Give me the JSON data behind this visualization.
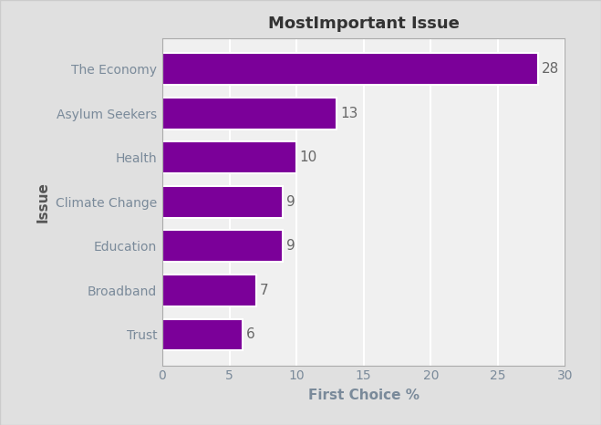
{
  "title": "MostImportant Issue",
  "categories": [
    "Trust",
    "Broadband",
    "Education",
    "Climate Change",
    "Health",
    "Asylum Seekers",
    "The Economy"
  ],
  "values": [
    6,
    7,
    9,
    9,
    10,
    13,
    28
  ],
  "bar_color": "#7B0099",
  "xlabel": "First Choice %",
  "ylabel": "Issue",
  "xlim": [
    0,
    30
  ],
  "xticks": [
    0,
    5,
    10,
    15,
    20,
    25,
    30
  ],
  "background_color": "#E0E0E0",
  "plot_bg_color": "#F0F0F0",
  "title_fontsize": 13,
  "label_fontsize": 11,
  "tick_fontsize": 10,
  "label_color": "#7A8A9A",
  "ylabel_color": "#555555",
  "value_label_color": "#666666",
  "grid_color": "#FFFFFF",
  "border_color": "#AAAAAA"
}
